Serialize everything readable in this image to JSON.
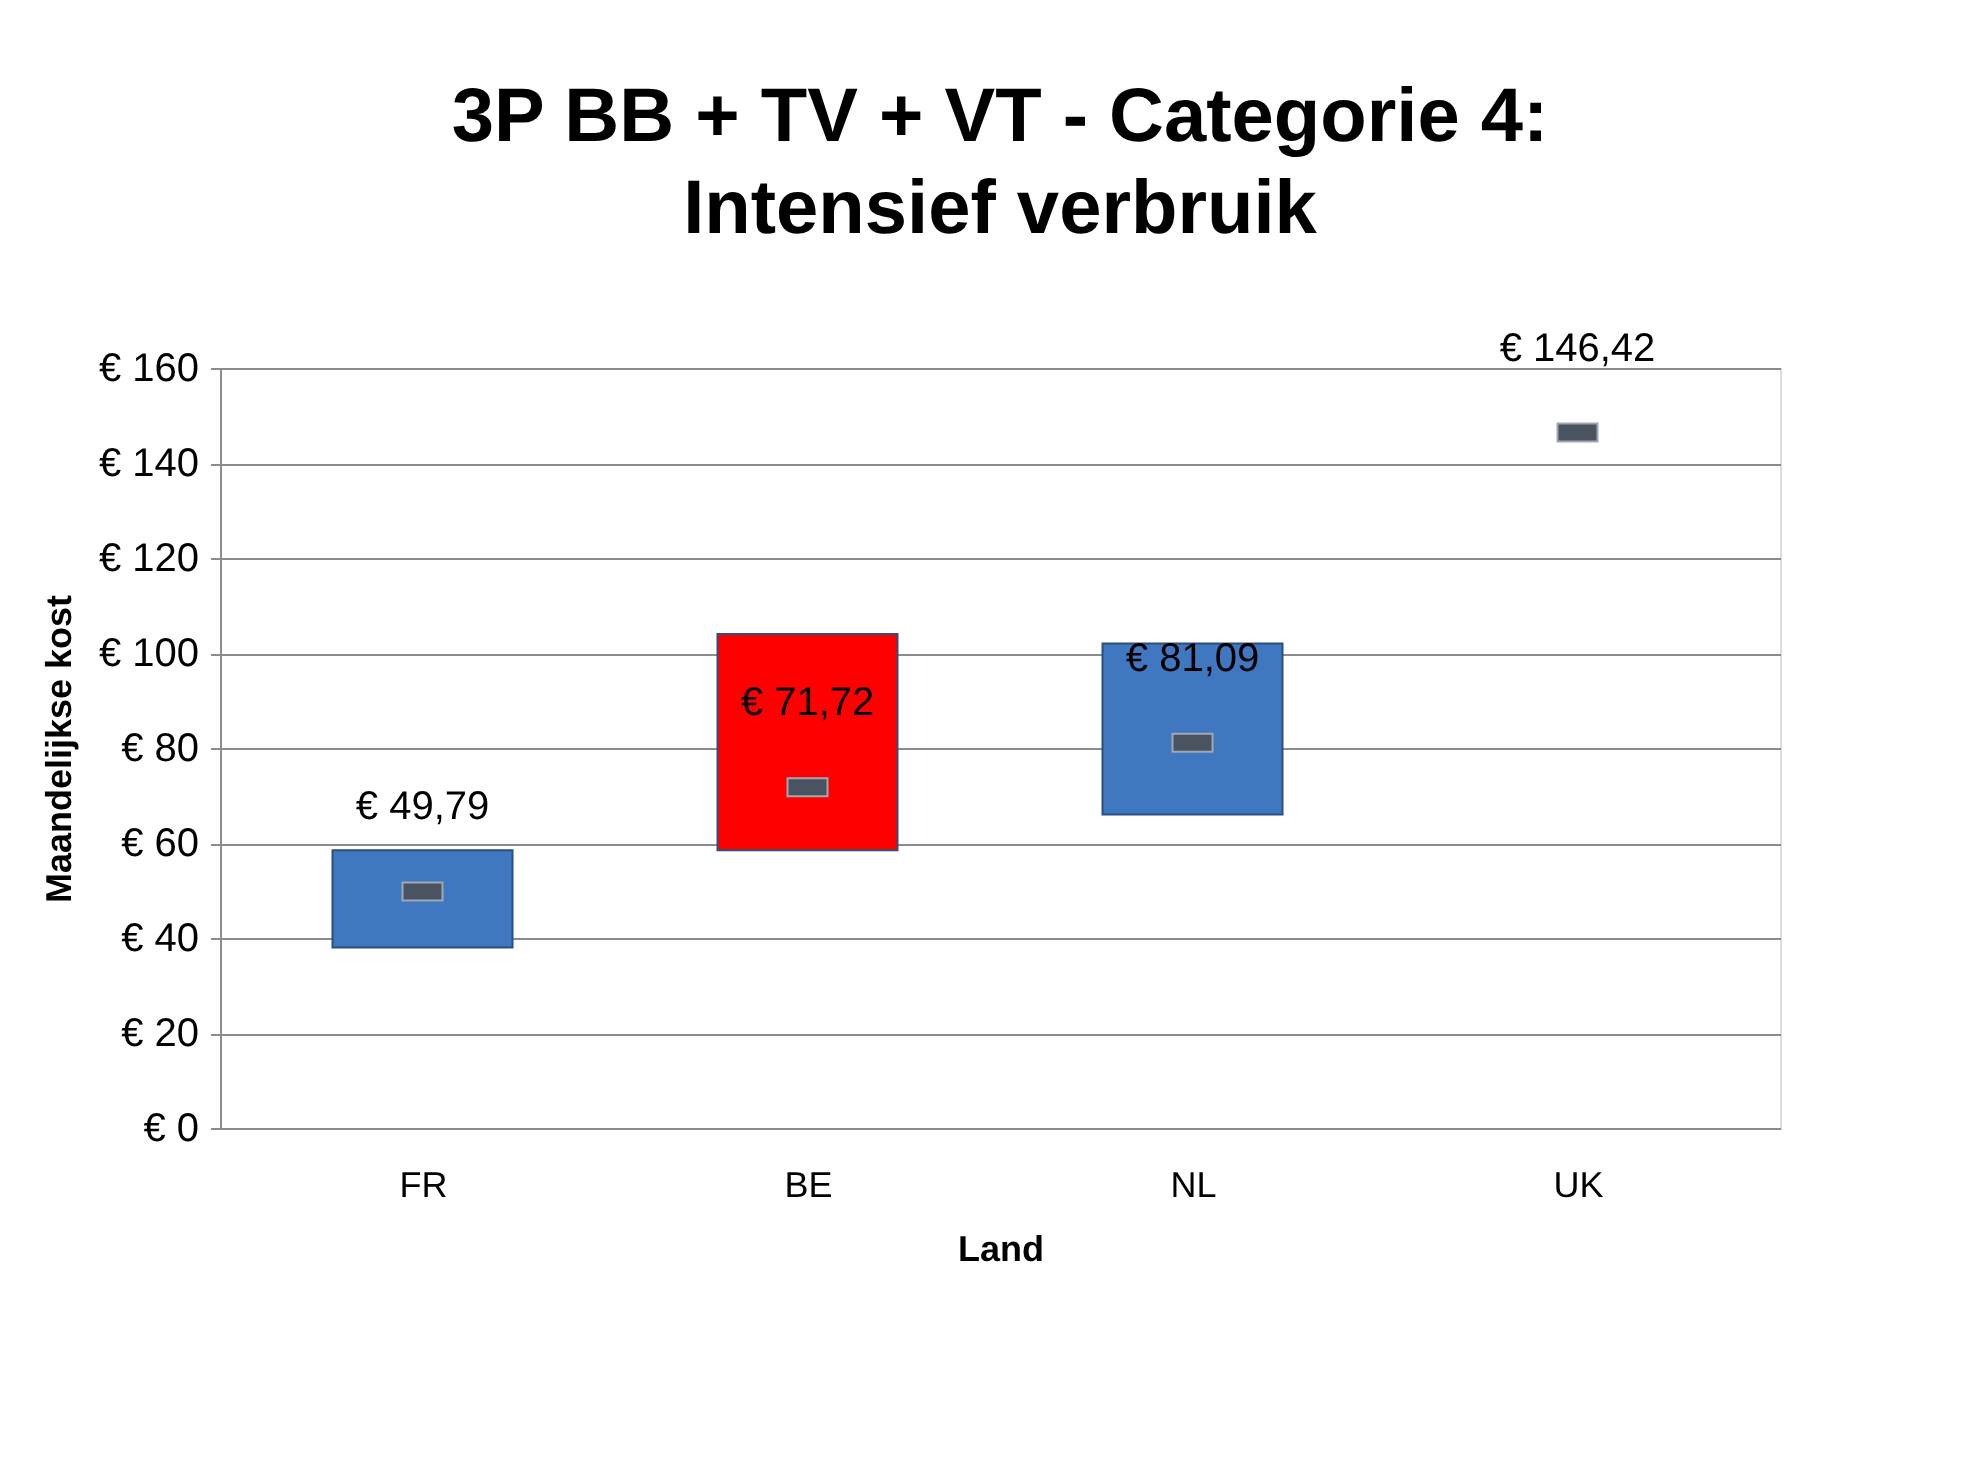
{
  "chart_data": {
    "type": "bar",
    "title": "3P BB + TV + VT - Categorie 4: Intensief verbruik",
    "xlabel": "Land",
    "ylabel": "Maandelijkse kost",
    "categories": [
      "FR",
      "BE",
      "NL",
      "UK"
    ],
    "series": [
      {
        "colors": [
          "#3f77c0",
          "#ff0000",
          "#3f77c0",
          "#3f77c0"
        ],
        "base": [
          38,
          58.5,
          66,
          null
        ],
        "values": [
          20.5,
          45.5,
          36,
          null
        ]
      },
      {
        "type": "scatter",
        "color": "#4a5360",
        "values": [
          49.79,
          71.72,
          81.09,
          146.42
        ],
        "data_labels": true,
        "value_labels": [
          "€ 49,79",
          "€ 71,72",
          "€ 81,09",
          "€ 146,42"
        ]
      }
    ],
    "ylim": [
      0,
      160
    ],
    "yticks": [
      {
        "value": 0,
        "label": "€ 0"
      },
      {
        "value": 20,
        "label": "€ 20"
      },
      {
        "value": 40,
        "label": "€ 40"
      },
      {
        "value": 60,
        "label": "€ 60"
      },
      {
        "value": 80,
        "label": "€ 80"
      },
      {
        "value": 100,
        "label": "€ 100"
      },
      {
        "value": 120,
        "label": "€ 120"
      },
      {
        "value": 140,
        "label": "€ 140"
      },
      {
        "value": 160,
        "label": "€ 160"
      }
    ],
    "grid": "y"
  }
}
